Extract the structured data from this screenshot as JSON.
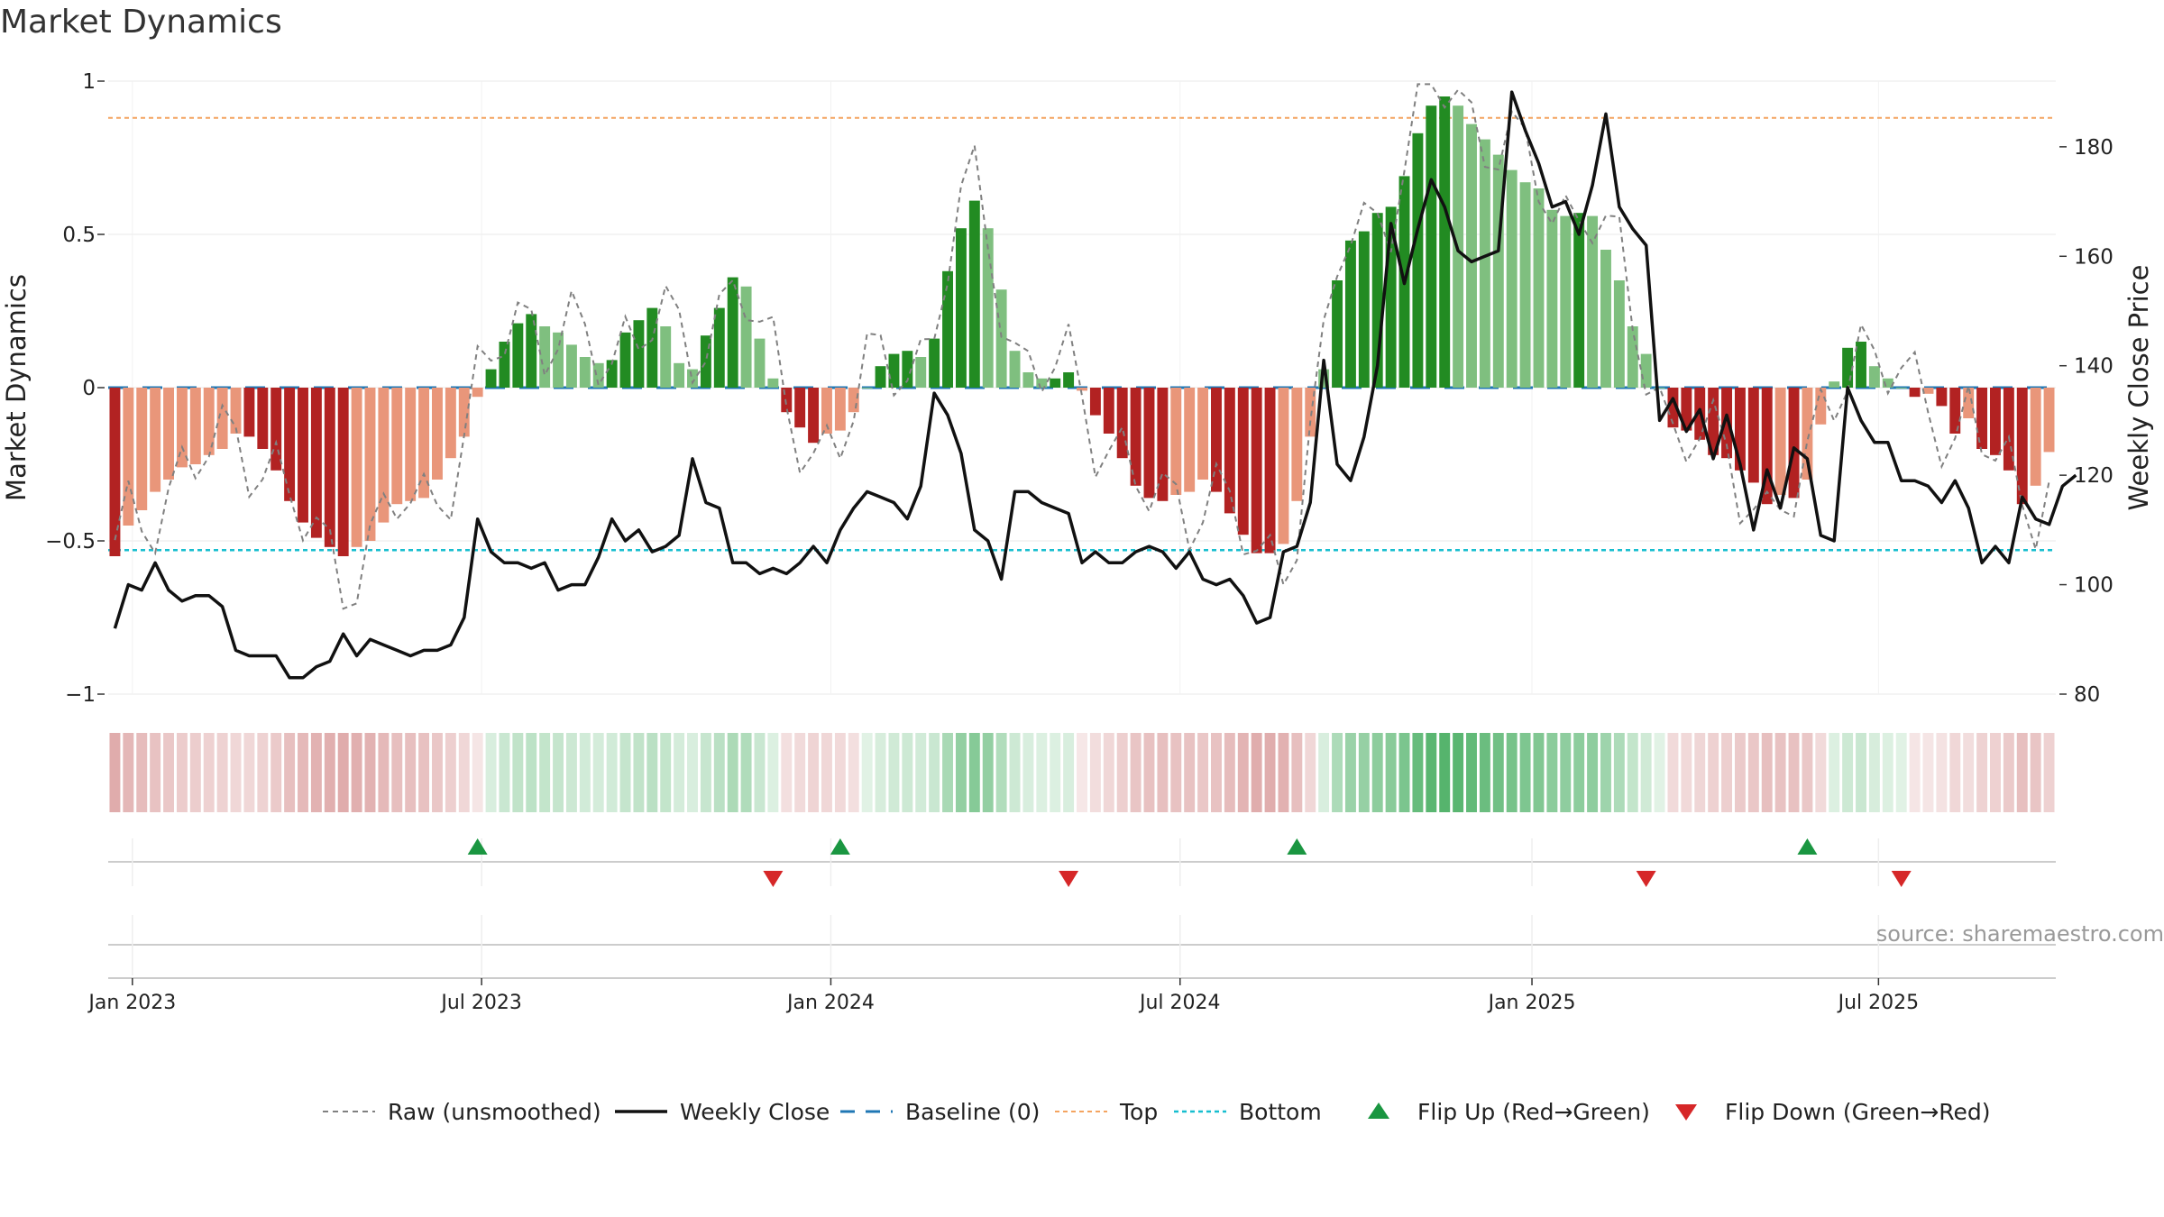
{
  "title": "Market Dynamics",
  "source": "source: sharemaestro.com",
  "chart_data": {
    "type": "bar",
    "title": "Market Dynamics",
    "ylabel_left": "Market Dynamics",
    "ylabel_right": "Weekly Close Price",
    "ylim_left": [
      -1,
      1
    ],
    "ylim_right": [
      80,
      192
    ],
    "yticks_left": [
      1,
      0.5,
      0,
      -0.5,
      -1
    ],
    "yticks_left_labels": [
      "1",
      "0.5",
      "0",
      "−0.5",
      "−1"
    ],
    "yticks_right": [
      180,
      160,
      140,
      120,
      100,
      80
    ],
    "x_tick_labels": [
      "Jan 2023",
      "Jul 2023",
      "Jan 2024",
      "Jul 2024",
      "Jan 2025",
      "Jul 2025"
    ],
    "top_level": 0.88,
    "bottom_level": -0.53,
    "baseline": 0,
    "colors": {
      "strong_red": "#b22222",
      "light_red": "#e9967a",
      "strong_green": "#228b22",
      "light_green": "#7fbf7f",
      "close": "#111111",
      "raw": "#808080",
      "baseline": "#1f77b4",
      "top": "#f4a460",
      "bottom": "#17becf",
      "flip_up": "#1a9641",
      "flip_down": "#d62728"
    },
    "bars": [
      -0.55,
      -0.45,
      -0.4,
      -0.34,
      -0.3,
      -0.26,
      -0.25,
      -0.22,
      -0.2,
      -0.15,
      -0.16,
      -0.2,
      -0.27,
      -0.37,
      -0.44,
      -0.49,
      -0.52,
      -0.55,
      -0.52,
      -0.5,
      -0.44,
      -0.38,
      -0.37,
      -0.36,
      -0.3,
      -0.23,
      -0.16,
      -0.03,
      0.06,
      0.15,
      0.21,
      0.24,
      0.2,
      0.18,
      0.14,
      0.1,
      0.08,
      0.09,
      0.18,
      0.22,
      0.26,
      0.2,
      0.08,
      0.06,
      0.17,
      0.26,
      0.36,
      0.33,
      0.16,
      0.03,
      -0.08,
      -0.13,
      -0.18,
      -0.15,
      -0.14,
      -0.08,
      0.0,
      0.07,
      0.11,
      0.12,
      0.1,
      0.16,
      0.38,
      0.52,
      0.61,
      0.52,
      0.32,
      0.12,
      0.05,
      0.03,
      0.03,
      0.05,
      -0.01,
      -0.09,
      -0.15,
      -0.23,
      -0.32,
      -0.36,
      -0.37,
      -0.35,
      -0.34,
      -0.3,
      -0.34,
      -0.41,
      -0.48,
      -0.54,
      -0.54,
      -0.51,
      -0.37,
      -0.16,
      0.06,
      0.35,
      0.48,
      0.51,
      0.57,
      0.59,
      0.69,
      0.83,
      0.92,
      0.95,
      0.92,
      0.86,
      0.81,
      0.76,
      0.71,
      0.67,
      0.65,
      0.58,
      0.56,
      0.57,
      0.56,
      0.45,
      0.35,
      0.2,
      0.11,
      0.0,
      -0.13,
      -0.14,
      -0.17,
      -0.22,
      -0.23,
      -0.27,
      -0.31,
      -0.38,
      -0.35,
      -0.36,
      -0.3,
      -0.12,
      0.02,
      0.13,
      0.15,
      0.07,
      0.03,
      0.0,
      -0.03,
      -0.02,
      -0.06,
      -0.15,
      -0.1,
      -0.2,
      -0.22,
      -0.27,
      -0.38,
      -0.32,
      -0.21
    ],
    "close": [
      92,
      100,
      99,
      104,
      99,
      97,
      98,
      98,
      96,
      88,
      87,
      87,
      87,
      83,
      83,
      85,
      86,
      91,
      87,
      90,
      89,
      88,
      87,
      88,
      88,
      89,
      94,
      112,
      106,
      104,
      104,
      103,
      104,
      99,
      100,
      100,
      105,
      112,
      108,
      110,
      106,
      107,
      109,
      123,
      115,
      114,
      104,
      104,
      102,
      103,
      102,
      104,
      107,
      104,
      110,
      114,
      117,
      116,
      115,
      112,
      118,
      135,
      131,
      124,
      110,
      108,
      101,
      117,
      117,
      115,
      114,
      113,
      104,
      106,
      104,
      104,
      106,
      107,
      106,
      103,
      106,
      101,
      100,
      101,
      98,
      93,
      94,
      106,
      107,
      115,
      141,
      122,
      119,
      127,
      140,
      166,
      155,
      165,
      174,
      169,
      161,
      159,
      160,
      161,
      190,
      183,
      177,
      169,
      170,
      164,
      173,
      186,
      169,
      165,
      162,
      130,
      134,
      128,
      132,
      123,
      131,
      122,
      110,
      121,
      114,
      125,
      123,
      109,
      108,
      136,
      130,
      126,
      126,
      119,
      119,
      118,
      115,
      119,
      114,
      104,
      107,
      104,
      116,
      112,
      111,
      118,
      120
    ]
  },
  "flip_up_weeks": [
    27,
    54,
    88,
    126
  ],
  "flip_down_weeks": [
    49,
    71,
    114,
    133
  ],
  "legend": [
    {
      "label": "Raw (unsmoothed)",
      "type": "dashed-gray"
    },
    {
      "label": "Weekly Close",
      "type": "solid-black"
    },
    {
      "label": "Baseline (0)",
      "type": "dashed-blue"
    },
    {
      "label": "Top",
      "type": "dotted-orange"
    },
    {
      "label": "Bottom",
      "type": "dotted-cyan"
    },
    {
      "label": "Flip Up (Red→Green)",
      "type": "triangle-up"
    },
    {
      "label": "Flip Down (Green→Red)",
      "type": "triangle-down"
    }
  ]
}
